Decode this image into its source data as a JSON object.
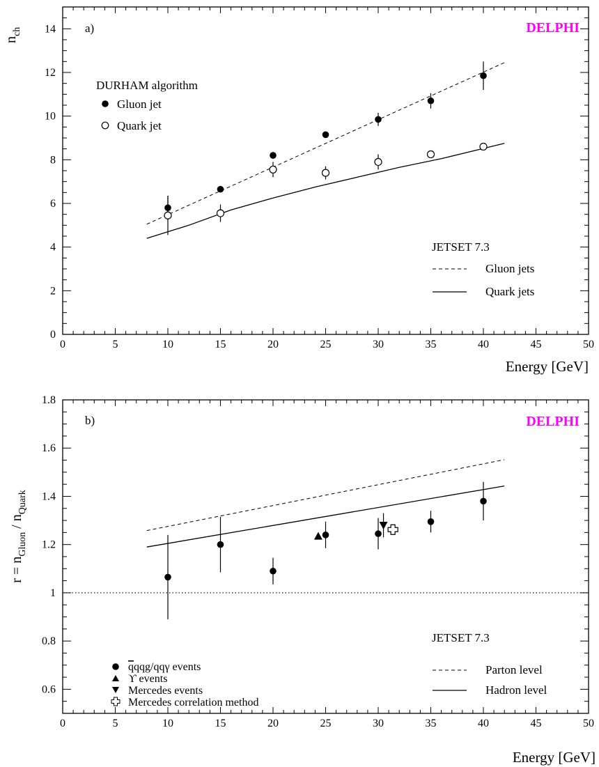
{
  "chart_data": [
    {
      "type": "scatter",
      "panel_label": "a)",
      "brand": "DELPHI",
      "brand_color": "#ff00ff",
      "xlabel": "Energy [GeV]",
      "ylabel": "n",
      "ylabel_sub": "ch",
      "xlim": [
        0,
        50
      ],
      "ylim": [
        0,
        15
      ],
      "xticks": [
        0,
        5,
        10,
        15,
        20,
        25,
        30,
        35,
        40,
        45,
        50
      ],
      "yticks": [
        0,
        2,
        4,
        6,
        8,
        10,
        12,
        14
      ],
      "grid": false,
      "legend_title": "DURHAM algorithm",
      "legend_placement": "upper-left",
      "series": [
        {
          "name": "Gluon jet",
          "marker": "filled-circle",
          "points": [
            {
              "x": 10,
              "y": 5.8,
              "err": 0.55
            },
            {
              "x": 15,
              "y": 6.65,
              "err": 0.15
            },
            {
              "x": 20,
              "y": 8.2,
              "err": 0.15
            },
            {
              "x": 25,
              "y": 9.15,
              "err": 0.1
            },
            {
              "x": 30,
              "y": 9.85,
              "err": 0.3
            },
            {
              "x": 35,
              "y": 10.7,
              "err": 0.35
            },
            {
              "x": 40,
              "y": 11.85,
              "err": 0.65
            }
          ]
        },
        {
          "name": "Quark jet",
          "marker": "open-circle",
          "points": [
            {
              "x": 10,
              "y": 5.45,
              "err": 0.9
            },
            {
              "x": 15,
              "y": 5.55,
              "err": 0.4
            },
            {
              "x": 20,
              "y": 7.55,
              "err": 0.35
            },
            {
              "x": 25,
              "y": 7.4,
              "err": 0.3
            },
            {
              "x": 30,
              "y": 7.9,
              "err": 0.35
            },
            {
              "x": 35,
              "y": 8.25,
              "err": 0.15
            },
            {
              "x": 40,
              "y": 8.6,
              "err": 0.15
            }
          ]
        }
      ],
      "model_title": "JETSET 7.3",
      "model_lines": [
        {
          "name": "Gluon jets",
          "style": "dashed",
          "x": [
            8,
            42
          ],
          "y": [
            5.05,
            12.45
          ]
        },
        {
          "name": "Quark jets",
          "style": "solid",
          "x": [
            8,
            12,
            16,
            20,
            24,
            28,
            32,
            36,
            42
          ],
          "y": [
            4.4,
            5.0,
            5.7,
            6.25,
            6.75,
            7.2,
            7.65,
            8.05,
            8.75
          ]
        }
      ]
    },
    {
      "type": "scatter",
      "panel_label": "b)",
      "brand": "DELPHI",
      "brand_color": "#ff00ff",
      "xlabel": "Energy [GeV]",
      "ylabel": "r = n",
      "ylabel_sub1": "Gluon",
      "ylabel_mid": " / n",
      "ylabel_sub2": "Quark",
      "xlim": [
        0,
        50
      ],
      "ylim": [
        0.5,
        1.8
      ],
      "xticks": [
        0,
        5,
        10,
        15,
        20,
        25,
        30,
        35,
        40,
        45,
        50
      ],
      "yticks": [
        0.6,
        0.8,
        1,
        1.2,
        1.4,
        1.6,
        1.8
      ],
      "grid": false,
      "reference_line": {
        "y": 1,
        "style": "dotted"
      },
      "legend_placement": "lower-left",
      "series": [
        {
          "name": "qqg/qqγ events",
          "marker": "filled-circle",
          "points": [
            {
              "x": 10,
              "y": 1.065,
              "err_up": 0.175,
              "err_down": 0.175
            },
            {
              "x": 15,
              "y": 1.2,
              "err_up": 0.115,
              "err_down": 0.115
            },
            {
              "x": 20,
              "y": 1.09,
              "err_up": 0.055,
              "err_down": 0.055
            },
            {
              "x": 25,
              "y": 1.24,
              "err_up": 0.055,
              "err_down": 0.055
            },
            {
              "x": 30,
              "y": 1.245,
              "err_up": 0.065,
              "err_down": 0.065
            },
            {
              "x": 35,
              "y": 1.295,
              "err_up": 0.045,
              "err_down": 0.045
            },
            {
              "x": 40,
              "y": 1.38,
              "err_up": 0.08,
              "err_down": 0.08
            }
          ]
        },
        {
          "name": "ϒ events",
          "marker": "filled-triangle-up",
          "points": [
            {
              "x": 24.3,
              "y": 1.235,
              "err_up": 0.01,
              "err_down": 0.01
            }
          ]
        },
        {
          "name": "Mercedes events",
          "marker": "filled-triangle-down",
          "points": [
            {
              "x": 30.5,
              "y": 1.28,
              "err_up": 0.05,
              "err_down": 0.05
            }
          ]
        },
        {
          "name": "Mercedes correlation method",
          "marker": "open-cross",
          "points": [
            {
              "x": 31.4,
              "y": 1.262,
              "err_up": 0.02,
              "err_down": 0.02
            }
          ]
        }
      ],
      "model_title": "JETSET 7.3",
      "model_lines": [
        {
          "name": "Parton level",
          "style": "dashed",
          "x": [
            8,
            42
          ],
          "y": [
            1.258,
            1.552
          ]
        },
        {
          "name": "Hadron level",
          "style": "solid",
          "x": [
            8,
            42
          ],
          "y": [
            1.19,
            1.443
          ]
        }
      ]
    }
  ]
}
